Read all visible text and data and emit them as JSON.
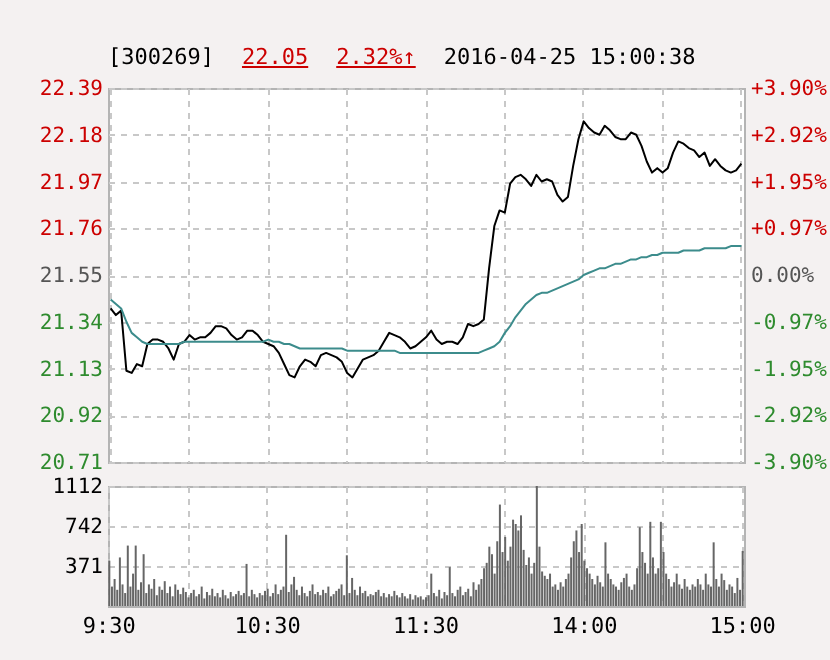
{
  "chart_data": [
    {
      "type": "line",
      "title": "[300269]",
      "annotations": [
        "22.05",
        "2.32%↑",
        "2016-04-25 15:00:38"
      ],
      "categories": [
        null,
        null,
        null,
        null,
        null,
        null,
        null,
        null,
        null,
        null,
        null,
        null,
        null,
        null,
        null,
        null,
        null,
        null,
        null,
        null,
        null,
        null,
        null,
        null,
        null,
        null,
        null,
        null,
        null,
        null,
        null,
        null,
        null,
        null,
        null,
        null,
        null,
        null,
        null,
        null,
        null,
        null,
        null,
        null,
        null,
        null,
        null,
        null,
        null,
        null,
        null,
        null,
        null,
        null,
        null,
        null,
        null,
        null,
        null,
        null,
        null,
        null,
        null,
        null,
        null,
        null,
        null,
        null,
        null,
        null,
        null,
        null,
        null,
        null,
        null,
        null,
        null,
        null,
        null,
        null,
        null,
        null,
        null,
        null,
        null,
        null,
        null,
        null,
        null,
        null,
        null,
        null,
        null,
        null,
        null,
        null,
        null,
        null,
        null,
        null,
        null,
        null,
        null,
        null,
        null,
        null,
        null,
        null,
        null,
        null,
        null,
        null,
        null,
        null,
        null,
        null,
        null,
        null,
        null,
        null,
        null
      ],
      "ylim": [
        20.71,
        22.39
      ],
      "yticks": [
        20.71,
        20.92,
        21.13,
        21.34,
        21.55,
        21.76,
        21.97,
        22.18,
        22.39
      ],
      "y2lim": [
        -3.9,
        3.9
      ],
      "y2ticks": [
        {
          "value": -3.9,
          "label": "-3.90%"
        },
        {
          "value": -2.92,
          "label": "-2.92%"
        },
        {
          "value": -1.95,
          "label": "-1.95%"
        },
        {
          "value": -0.97,
          "label": "-0.97%"
        },
        {
          "value": 0,
          "label": "0.00%"
        },
        {
          "value": 0.97,
          "label": "+0.97%"
        },
        {
          "value": 1.95,
          "label": "+1.95%"
        },
        {
          "value": 2.92,
          "label": "+2.92%"
        },
        {
          "value": 3.9,
          "label": "+3.90%"
        }
      ],
      "tick_labels": "y",
      "grid": true,
      "line_style": "solid",
      "series": [
        {
          "color": "#000000",
          "values": [
            21.4,
            21.37,
            21.39,
            21.12,
            21.11,
            21.15,
            21.14,
            21.24,
            21.26,
            21.26,
            21.25,
            21.22,
            21.17,
            21.24,
            21.25,
            21.28,
            21.26,
            21.27,
            21.27,
            21.29,
            21.32,
            21.32,
            21.31,
            21.28,
            21.26,
            21.27,
            21.3,
            21.3,
            21.28,
            21.25,
            21.24,
            21.23,
            21.2,
            21.15,
            21.1,
            21.09,
            21.14,
            21.17,
            21.16,
            21.14,
            21.19,
            21.2,
            21.19,
            21.18,
            21.16,
            21.11,
            21.09,
            21.13,
            21.17,
            21.18,
            21.19,
            21.21,
            21.25,
            21.29,
            21.28,
            21.27,
            21.25,
            21.22,
            21.23,
            21.25,
            21.27,
            21.3,
            21.26,
            21.24,
            21.25,
            21.25,
            21.24,
            21.27,
            21.33,
            21.32,
            21.33,
            21.35,
            21.58,
            21.77,
            21.84,
            21.83,
            21.96,
            21.99,
            22.0,
            21.98,
            21.95,
            22.0,
            21.97,
            21.98,
            21.97,
            21.91,
            21.88,
            21.9,
            22.04,
            22.16,
            22.24,
            22.21,
            22.19,
            22.18,
            22.22,
            22.2,
            22.17,
            22.16,
            22.16,
            22.19,
            22.18,
            22.13,
            22.06,
            22.01,
            22.03,
            22.01,
            22.03,
            22.1,
            22.15,
            22.14,
            22.12,
            22.11,
            22.08,
            22.1,
            22.04,
            22.07,
            22.04,
            22.02,
            22.01,
            22.02,
            22.05
          ]
        },
        {
          "color": "#3c8c8c",
          "values": [
            21.44,
            21.42,
            21.4,
            21.34,
            21.29,
            21.27,
            21.25,
            21.24,
            21.24,
            21.24,
            21.24,
            21.24,
            21.24,
            21.24,
            21.25,
            21.25,
            21.25,
            21.25,
            21.25,
            21.25,
            21.25,
            21.25,
            21.25,
            21.25,
            21.25,
            21.25,
            21.25,
            21.25,
            21.25,
            21.25,
            21.26,
            21.25,
            21.25,
            21.24,
            21.24,
            21.23,
            21.22,
            21.22,
            21.22,
            21.22,
            21.22,
            21.22,
            21.22,
            21.22,
            21.22,
            21.21,
            21.21,
            21.21,
            21.21,
            21.21,
            21.21,
            21.21,
            21.21,
            21.21,
            21.21,
            21.2,
            21.2,
            21.2,
            21.2,
            21.2,
            21.2,
            21.2,
            21.2,
            21.2,
            21.2,
            21.2,
            21.2,
            21.2,
            21.2,
            21.2,
            21.2,
            21.21,
            21.22,
            21.23,
            21.25,
            21.29,
            21.32,
            21.36,
            21.39,
            21.42,
            21.44,
            21.46,
            21.47,
            21.47,
            21.48,
            21.49,
            21.5,
            21.51,
            21.52,
            21.53,
            21.55,
            21.56,
            21.57,
            21.58,
            21.58,
            21.59,
            21.6,
            21.6,
            21.61,
            21.62,
            21.62,
            21.63,
            21.63,
            21.64,
            21.64,
            21.65,
            21.65,
            21.65,
            21.65,
            21.66,
            21.66,
            21.66,
            21.66,
            21.67,
            21.67,
            21.67,
            21.67,
            21.67,
            21.68,
            21.68,
            21.68
          ]
        }
      ]
    },
    {
      "type": "bar",
      "color": "#666666",
      "grid": true,
      "categories": [
        "9:30",
        null,
        null,
        null,
        null,
        null,
        null,
        null,
        null,
        null,
        null,
        null,
        null,
        null,
        null,
        null,
        null,
        null,
        null,
        null,
        null,
        null,
        null,
        null,
        null,
        null,
        null,
        null,
        null,
        null,
        null,
        null,
        null,
        null,
        null,
        null,
        null,
        null,
        null,
        null,
        null,
        null,
        null,
        null,
        null,
        null,
        null,
        null,
        null,
        null,
        null,
        null,
        null,
        null,
        null,
        null,
        null,
        null,
        null,
        null,
        "10:30",
        null,
        null,
        null,
        null,
        null,
        null,
        null,
        null,
        null,
        null,
        null,
        null,
        null,
        null,
        null,
        null,
        null,
        null,
        null,
        null,
        null,
        null,
        null,
        null,
        null,
        null,
        null,
        null,
        null,
        null,
        null,
        null,
        null,
        null,
        null,
        null,
        null,
        null,
        null,
        null,
        null,
        null,
        null,
        null,
        null,
        null,
        null,
        null,
        null,
        null,
        null,
        null,
        null,
        null,
        null,
        null,
        null,
        null,
        null,
        "11:30",
        null,
        null,
        null,
        null,
        null,
        null,
        null,
        null,
        null,
        null,
        null,
        null,
        null,
        null,
        null,
        null,
        null,
        null,
        null,
        null,
        null,
        null,
        null,
        null,
        null,
        null,
        null,
        null,
        null,
        null,
        null,
        null,
        null,
        null,
        null,
        null,
        null,
        null,
        null,
        null,
        null,
        null,
        null,
        null,
        null,
        null,
        null,
        null,
        null,
        null,
        null,
        null,
        null,
        null,
        null,
        null,
        null,
        null,
        null,
        "14:00",
        null,
        null,
        null,
        null,
        null,
        null,
        null,
        null,
        null,
        null,
        null,
        null,
        null,
        null,
        null,
        null,
        null,
        null,
        null,
        null,
        null,
        null,
        null,
        null,
        null,
        null,
        null,
        null,
        null,
        null,
        null,
        null,
        null,
        null,
        null,
        null,
        null,
        null,
        null,
        null,
        null,
        null,
        null,
        null,
        null,
        null,
        null,
        null,
        null,
        null,
        null,
        null,
        null,
        null,
        null,
        null,
        null,
        null,
        null,
        "15:00"
      ],
      "ylim": [
        0,
        1112
      ],
      "yticks": [
        371,
        742,
        1112
      ],
      "values": [
        420,
        180,
        250,
        150,
        450,
        200,
        120,
        560,
        180,
        300,
        560,
        150,
        220,
        480,
        120,
        200,
        160,
        250,
        100,
        180,
        150,
        230,
        120,
        180,
        90,
        200,
        150,
        110,
        170,
        130,
        80,
        120,
        150,
        90,
        110,
        180,
        70,
        130,
        100,
        160,
        90,
        120,
        80,
        150,
        100,
        70,
        130,
        90,
        110,
        140,
        100,
        120,
        390,
        90,
        150,
        110,
        80,
        120,
        100,
        140,
        160,
        90,
        120,
        200,
        110,
        150,
        180,
        660,
        130,
        200,
        270,
        150,
        100,
        180,
        120,
        90,
        140,
        200,
        110,
        130,
        100,
        150,
        120,
        180,
        90,
        110,
        140,
        160,
        200,
        100,
        470,
        120,
        260,
        150,
        100,
        180,
        120,
        140,
        90,
        110,
        100,
        130,
        150,
        90,
        120,
        80,
        110,
        90,
        140,
        100,
        80,
        120,
        90,
        70,
        110,
        60,
        100,
        80,
        90,
        60,
        80,
        100,
        300,
        120,
        90,
        150,
        70,
        130,
        100,
        360,
        120,
        90,
        150,
        180,
        100,
        130,
        160,
        90,
        220,
        150,
        200,
        250,
        350,
        400,
        550,
        480,
        300,
        600,
        940,
        500,
        640,
        420,
        550,
        800,
        760,
        700,
        840,
        520,
        380,
        450,
        300,
        400,
        1112,
        550,
        320,
        280,
        250,
        300,
        180,
        200,
        150,
        220,
        180,
        250,
        300,
        450,
        600,
        700,
        500,
        760,
        420,
        350,
        300,
        250,
        200,
        280,
        220,
        180,
        590,
        300,
        250,
        200,
        180,
        150,
        220,
        260,
        300,
        180,
        150,
        200,
        350,
        730,
        500,
        400,
        300,
        780,
        450,
        300,
        350,
        780,
        500,
        300,
        250,
        180,
        220,
        300,
        200,
        160,
        250,
        180,
        150,
        200,
        180,
        250,
        200,
        150,
        300,
        200,
        180,
        590,
        250,
        180,
        300,
        240,
        150,
        200,
        180,
        120,
        260,
        150,
        510
      ]
    }
  ]
}
